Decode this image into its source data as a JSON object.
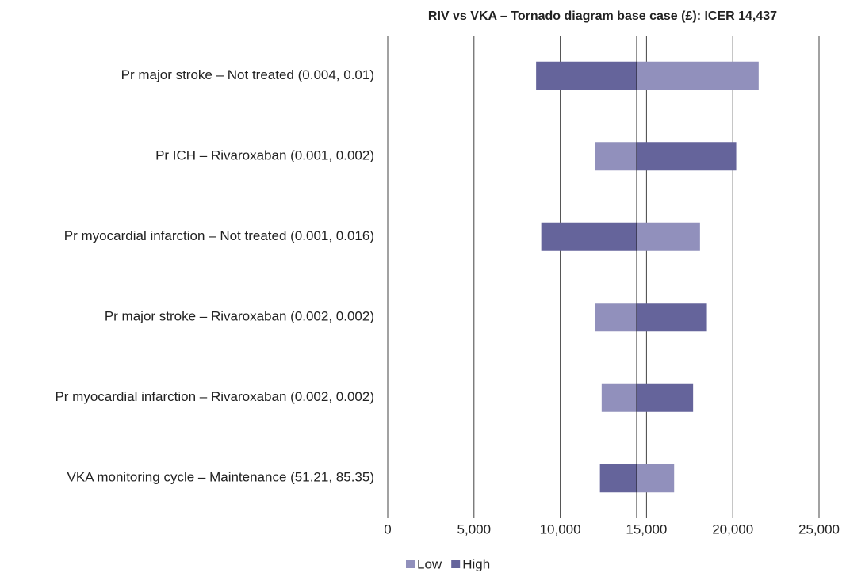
{
  "chart_data": {
    "type": "tornado",
    "title": "RIV vs VKA  – Tornado diagram base case (£): ICER  14,437",
    "base": 14437,
    "categories": [
      "Pr major stroke – Not treated (0.004, 0.01)",
      "Pr ICH – Rivaroxaban (0.001, 0.002)",
      "Pr myocardial infarction – Not treated (0.001, 0.016)",
      "Pr major stroke – Rivaroxaban (0.002, 0.002)",
      "Pr myocardial infarction – Rivaroxaban  (0.002, 0.002)",
      "VKA monitoring cycle – Maintenance (51.21, 85.35)"
    ],
    "series": [
      {
        "name": "Low",
        "color": "#9190bc",
        "values": [
          21500,
          12000,
          18100,
          12000,
          12400,
          16600
        ]
      },
      {
        "name": "High",
        "color": "#65649b",
        "values": [
          8600,
          20200,
          8900,
          18500,
          17700,
          12300
        ]
      }
    ],
    "xlim": [
      0,
      25000
    ],
    "xticks": [
      0,
      {
        "value": 5000,
        "label": "5,000"
      },
      {
        "value": 10000,
        "label": "10,000"
      },
      {
        "value": 15000,
        "label": "15,000"
      },
      {
        "value": 20000,
        "label": "20,000"
      },
      {
        "value": 25000,
        "label": "25,000"
      }
    ],
    "grid": true,
    "legend": "bottom"
  }
}
